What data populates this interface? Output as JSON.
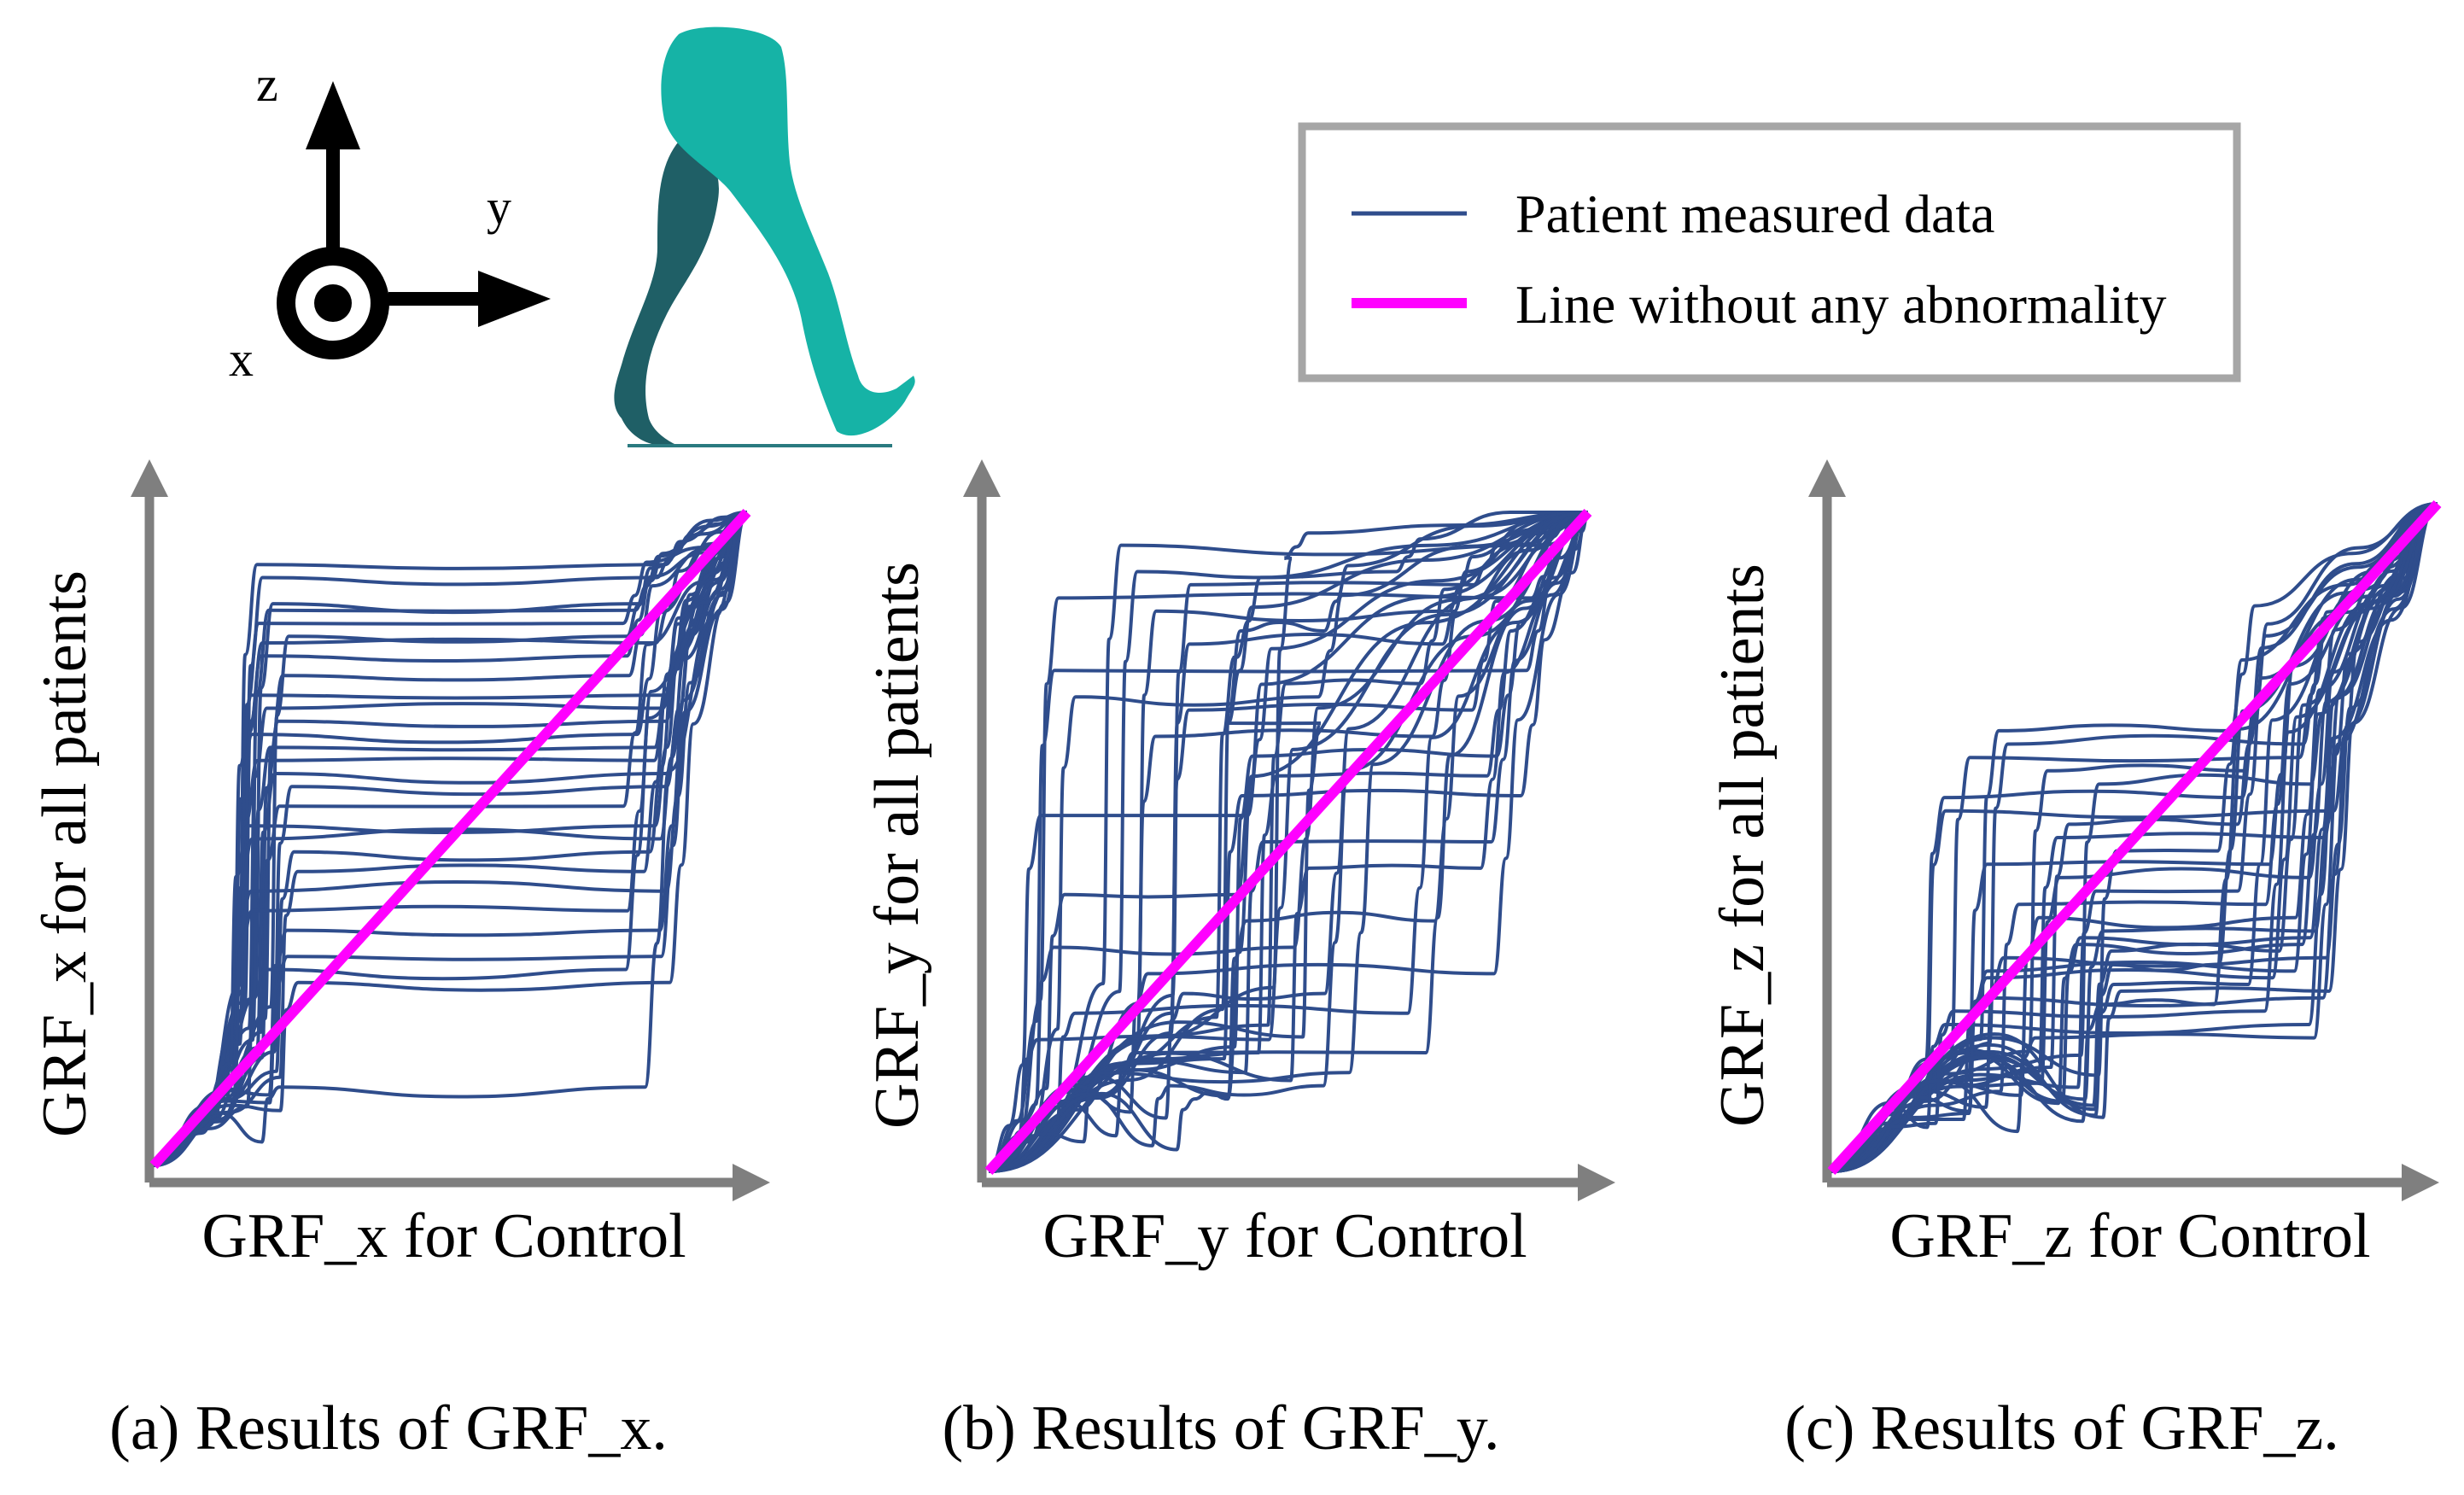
{
  "colors": {
    "patient": "#2f4d8c",
    "reference": "#ff00ff",
    "axis": "#7f7f7f",
    "legend_border": "#a6a6a6",
    "leg_back": "#1f5f66",
    "leg_front": "#16b3a6"
  },
  "coordinate_system": {
    "z_label": "z",
    "y_label": "y",
    "x_label": "x",
    "icons": [
      "arrow-up-icon",
      "arrow-right-icon",
      "out-of-page-icon",
      "walking-legs-icon"
    ]
  },
  "legend": {
    "items": [
      {
        "label": "Patient measured data",
        "kind": "patient"
      },
      {
        "label": "Line without any abnormality",
        "kind": "reference"
      }
    ]
  },
  "chart_data": [
    {
      "id": "a",
      "type": "line",
      "xlabel": "GRF_x for Control",
      "ylabel": "GRF_x for all patients",
      "caption": "(a) Results of GRF_x.",
      "xlim": [
        0,
        1
      ],
      "ylim": [
        0,
        1
      ],
      "reference": {
        "name": "Line without any abnormality",
        "x": [
          0,
          1
        ],
        "y": [
          0,
          1
        ]
      },
      "plateaus": [
        0.92,
        0.9,
        0.86,
        0.85,
        0.83,
        0.81,
        0.8,
        0.78,
        0.75,
        0.72,
        0.7,
        0.68,
        0.66,
        0.64,
        0.62,
        0.6,
        0.58,
        0.55,
        0.52,
        0.5,
        0.48,
        0.45,
        0.42,
        0.39,
        0.36,
        0.32,
        0.3,
        0.28,
        0.12
      ],
      "step_ranges": [
        [
          0.12,
          0.22
        ],
        [
          0.8,
          0.9
        ]
      ],
      "plateau_range": [
        0.12,
        0.97
      ]
    },
    {
      "id": "b",
      "type": "line",
      "xlabel": "GRF_y for Control",
      "ylabel": "GRF_y for all patients",
      "caption": "(b) Results of GRF_y.",
      "xlim": [
        0,
        1
      ],
      "ylim": [
        0,
        1
      ],
      "reference": {
        "name": "Line without any abnormality",
        "x": [
          0,
          1
        ],
        "y": [
          0,
          1
        ]
      },
      "plateaus": [
        0.95,
        0.93,
        0.91,
        0.89,
        0.87,
        0.85,
        0.82,
        0.8,
        0.78,
        0.76,
        0.74,
        0.72,
        0.7,
        0.68,
        0.66,
        0.63,
        0.6,
        0.57,
        0.54,
        0.5,
        0.46,
        0.42,
        0.38,
        0.34,
        0.3,
        0.27,
        0.24,
        0.2,
        0.18,
        0.15,
        0.13,
        0.11
      ],
      "step_ranges": [
        [
          0.05,
          0.55
        ],
        [
          0.4,
          0.95
        ]
      ],
      "plateau_range": [
        0.05,
        0.98
      ]
    },
    {
      "id": "c",
      "type": "line",
      "xlabel": "GRF_z for Control",
      "ylabel": "GRF_z for all patients",
      "caption": "(c) Results of GRF_z.",
      "xlim": [
        0,
        1
      ],
      "ylim": [
        0,
        1
      ],
      "reference": {
        "name": "Line without any abnormality",
        "x": [
          0,
          1
        ],
        "y": [
          0,
          1
        ]
      },
      "plateaus": [
        0.66,
        0.64,
        0.62,
        0.6,
        0.58,
        0.56,
        0.54,
        0.52,
        0.5,
        0.48,
        0.46,
        0.44,
        0.42,
        0.4,
        0.38,
        0.36,
        0.35,
        0.34,
        0.33,
        0.32,
        0.31,
        0.3,
        0.29,
        0.28,
        0.27,
        0.26,
        0.25,
        0.24,
        0.22,
        0.2
      ],
      "step_ranges": [
        [
          0.15,
          0.45
        ],
        [
          0.65,
          0.85
        ]
      ],
      "plateau_range": [
        0.2,
        0.67
      ]
    }
  ]
}
